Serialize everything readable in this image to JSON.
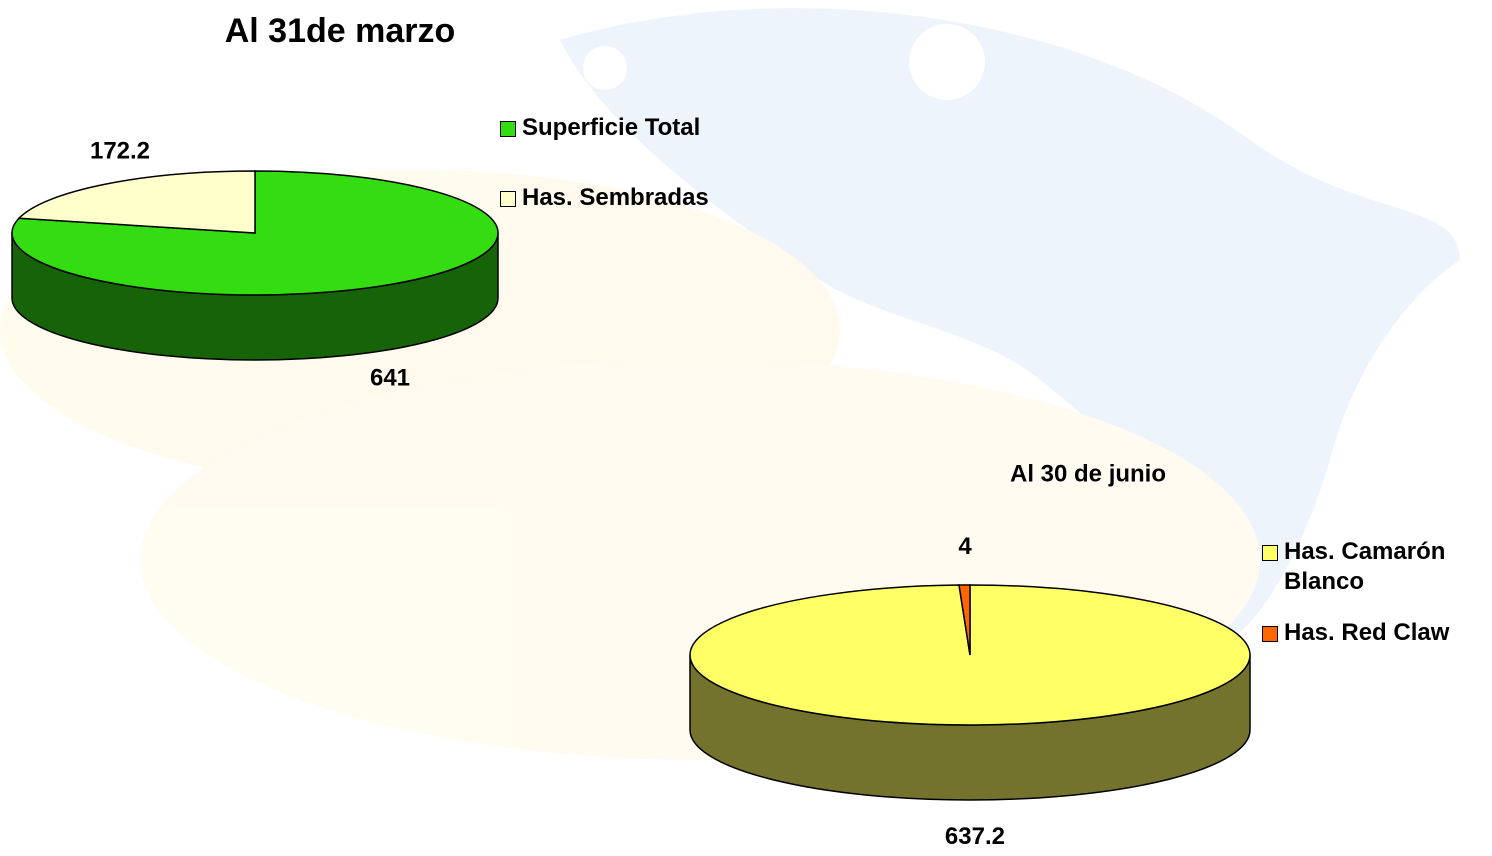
{
  "chart_data": [
    {
      "type": "pie",
      "title": "Al 31de marzo",
      "categories": [
        "Superficie Total",
        "Has. Sembradas"
      ],
      "values": [
        641,
        172.2
      ],
      "colors": [
        "#33dd11",
        "#ffffcc"
      ]
    },
    {
      "type": "pie",
      "title": "Al 30 de junio",
      "categories": [
        "Has. Camarón Blanco",
        "Has. Red Claw"
      ],
      "values": [
        637.2,
        4
      ],
      "colors": [
        "#ffff66",
        "#ff6600"
      ]
    }
  ]
}
